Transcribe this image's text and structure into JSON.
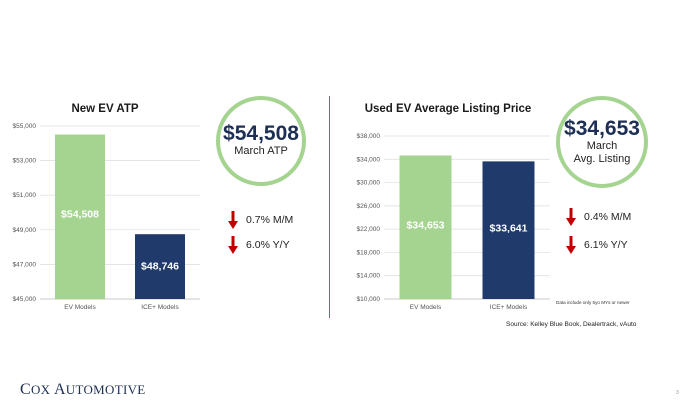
{
  "chart_data": [
    {
      "type": "bar",
      "title": "New EV ATP",
      "categories": [
        "EV Models",
        "ICE+ Models"
      ],
      "values": [
        54508,
        48746
      ],
      "data_labels": [
        "$54,508",
        "$48,746"
      ],
      "colors": [
        "#a5d490",
        "#1f3a6b"
      ],
      "ylim": [
        45000,
        55000
      ],
      "yticks": [
        "$55,000",
        "$53,000",
        "$51,000",
        "$49,000",
        "$47,000",
        "$45,000"
      ],
      "ytick_values": [
        55000,
        53000,
        51000,
        49000,
        47000,
        45000
      ],
      "grid": true,
      "xlabel": "",
      "ylabel": ""
    },
    {
      "type": "bar",
      "title": "Used EV Average Listing Price",
      "categories": [
        "EV Models",
        "ICE+ Models"
      ],
      "values": [
        34653,
        33641
      ],
      "data_labels": [
        "$34,653",
        "$33,641"
      ],
      "colors": [
        "#a5d490",
        "#1f3a6b"
      ],
      "ylim": [
        10000,
        38000
      ],
      "yticks": [
        "$38,000",
        "$34,000",
        "$30,000",
        "$26,000",
        "$22,000",
        "$18,000",
        "$14,000",
        "$10,000"
      ],
      "ytick_values": [
        38000,
        34000,
        30000,
        26000,
        22000,
        18000,
        14000,
        10000
      ],
      "grid": true,
      "xlabel": "",
      "ylabel": ""
    }
  ],
  "kpi_left": {
    "value": "$54,508",
    "label": "March ATP"
  },
  "kpi_right": {
    "value": "$34,653",
    "label_line1": "March",
    "label_line2": "Avg. Listing"
  },
  "changes_left": [
    {
      "text": "0.7% M/M",
      "direction": "down"
    },
    {
      "text": "6.0% Y/Y",
      "direction": "down"
    }
  ],
  "changes_right": [
    {
      "text": "0.4% M/M",
      "direction": "down"
    },
    {
      "text": "6.1% Y/Y",
      "direction": "down"
    }
  ],
  "footnote": "Data include only 5yo MYs or newer",
  "source": "Source: Kelley Blue Book, Dealertrack, vAuto",
  "logo": {
    "first_cap": "C",
    "first_rest": "OX",
    "second_cap": "A",
    "second_rest": "UTOMOTIVE"
  },
  "page_number": "3",
  "colors": {
    "accent_green": "#a5d490",
    "navy": "#1f3a6b",
    "arrow_red": "#c00000",
    "divider": "#2f8e83"
  }
}
